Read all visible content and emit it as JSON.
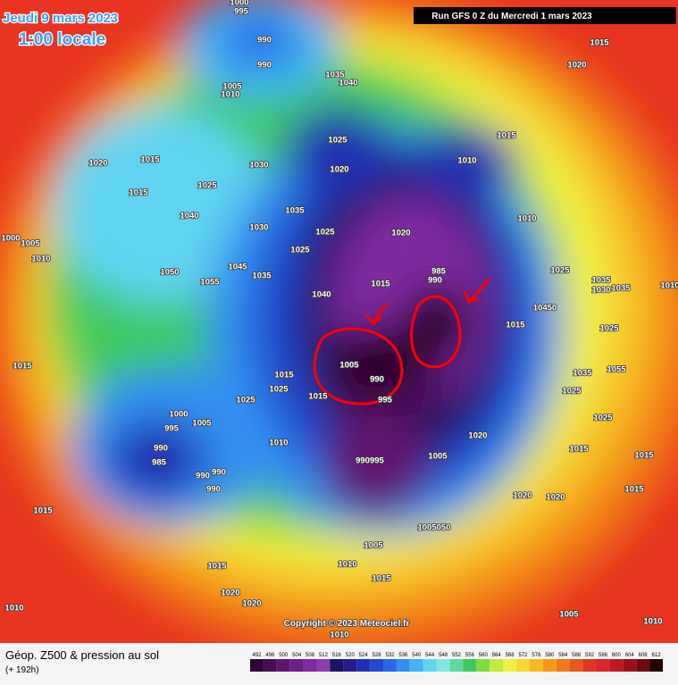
{
  "header": {
    "date": "Jeudi 9 mars 2023",
    "local_time": "1:00 locale",
    "run": "Run GFS 0 Z du Mercredi 1 mars 2023"
  },
  "copyright": "Copyright © 2023 Meteociel.fr",
  "footer": {
    "title": "Géop. Z500 & pression au sol",
    "lead": "(+ 192h)"
  },
  "scale": {
    "values": [
      492,
      496,
      500,
      504,
      508,
      512,
      516,
      520,
      524,
      528,
      532,
      536,
      540,
      544,
      548,
      552,
      556,
      560,
      564,
      568,
      572,
      576,
      580,
      584,
      588,
      592,
      596,
      600,
      604,
      608,
      612
    ],
    "colors": [
      "#2e0636",
      "#4a0a55",
      "#5e1470",
      "#6e1e88",
      "#7e2aa0",
      "#8c3cb4",
      "#1c1464",
      "#241c8c",
      "#2030b0",
      "#2048d0",
      "#2868e8",
      "#3090f0",
      "#40b4f4",
      "#60d4f0",
      "#80e8e0",
      "#60d8a0",
      "#40c860",
      "#80dc40",
      "#c0ec40",
      "#f0f040",
      "#f8d830",
      "#f8b820",
      "#f89818",
      "#f07818",
      "#e85818",
      "#e03820",
      "#d82828",
      "#c01820",
      "#a01018",
      "#700810",
      "#200000"
    ]
  },
  "isobar_labels": [
    "1000",
    "995",
    "990",
    "990",
    "1005",
    "1010",
    "1035",
    "1040",
    "1015",
    "1020",
    "1025",
    "1020",
    "1015",
    "1010",
    "1015",
    "1020",
    "1015",
    "1025",
    "1030",
    "1040",
    "1035",
    "1030",
    "1025",
    "1020",
    "1010",
    "1000",
    "1005",
    "1010",
    "1025",
    "1050",
    "1055",
    "1045",
    "1035",
    "985",
    "990",
    "1015",
    "1040",
    "1025",
    "1035",
    "1030",
    "1035",
    "1010",
    "10450",
    "1015",
    "1025",
    "1015",
    "1005",
    "990",
    "995",
    "1015",
    "1025",
    "1015",
    "1025",
    "1035",
    "1055",
    "1025",
    "1025",
    "1000",
    "995",
    "1005",
    "1010",
    "1020",
    "990",
    "985",
    "990",
    "990",
    "990",
    "990995",
    "1005",
    "1015",
    "1015",
    "1020",
    "1020",
    "1015",
    "1015",
    "1005050",
    "1005",
    "1010",
    "1015",
    "1015",
    "1020",
    "1020",
    "1010",
    "1005",
    "1010",
    "1010"
  ]
}
